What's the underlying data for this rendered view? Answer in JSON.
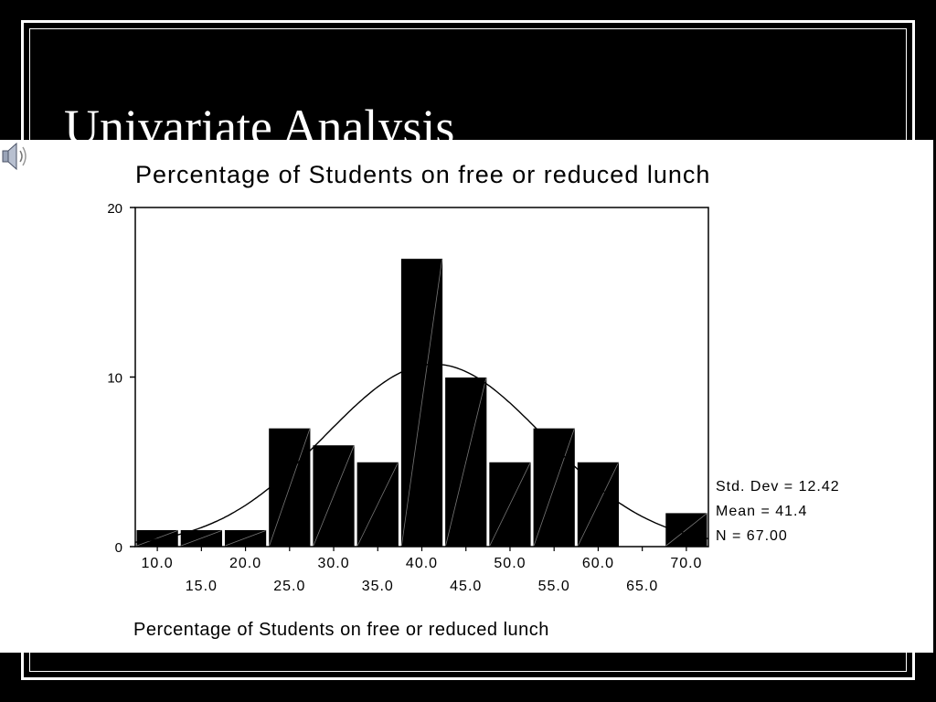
{
  "slide": {
    "title": "Univariate Analysis"
  },
  "chart_data": {
    "type": "bar",
    "title": "Percentage of Students on free or reduced lunch",
    "xlabel": "Percentage of Students on free or reduced lunch",
    "ylabel": "",
    "ylim": [
      0,
      20
    ],
    "yticks": [
      "0",
      "10",
      "20"
    ],
    "bin_width": 5,
    "categories": [
      "10.0",
      "15.0",
      "20.0",
      "25.0",
      "30.0",
      "35.0",
      "40.0",
      "45.0",
      "50.0",
      "55.0",
      "60.0",
      "65.0",
      "70.0"
    ],
    "values": [
      1,
      1,
      1,
      7,
      6,
      5,
      17,
      10,
      5,
      7,
      5,
      0,
      2
    ],
    "normal_curve": {
      "mean": 41.4,
      "std": 12.42,
      "n": 67
    },
    "grid": false,
    "stats": {
      "std_dev": "Std. Dev = 12.42",
      "mean": "Mean = 41.4",
      "n": "N = 67.00"
    }
  },
  "icons": {
    "audio": "speaker-icon"
  },
  "colors": {
    "background": "#000000",
    "panel": "#ffffff",
    "bars": "#000000"
  }
}
